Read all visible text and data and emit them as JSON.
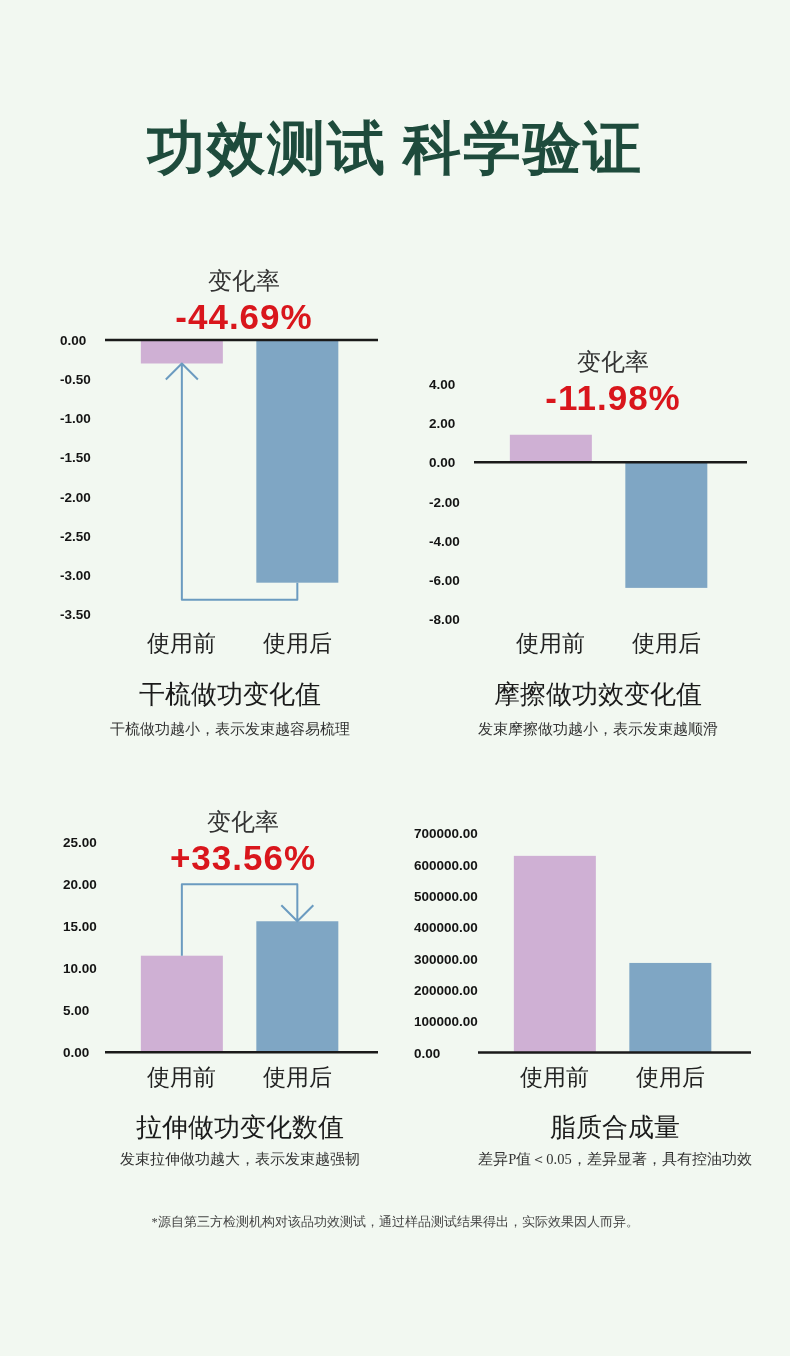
{
  "chart_data": [
    {
      "type": "other",
      "title": "功效测试 科学验证"
    },
    {
      "type": "bar",
      "title": "干梳做功变化值",
      "subtitle": "干梳做功越小，表示发束越容易梳理",
      "annotations": [
        "变化率",
        "-44.69%"
      ],
      "categories": [
        "使用前",
        "使用后"
      ],
      "values": [
        -0.3,
        -3.1
      ],
      "colors": [
        "#cfb0d4",
        "#7fa6c4"
      ],
      "ylim": [
        -3.5,
        0
      ],
      "yticks": [
        {
          "value": 0,
          "label": "0.00"
        },
        {
          "value": -0.5,
          "label": "-0.50"
        },
        {
          "value": -1,
          "label": "-1.00"
        },
        {
          "value": -1.5,
          "label": "-1.50"
        },
        {
          "value": -2,
          "label": "-2.00"
        },
        {
          "value": -2.5,
          "label": "-2.50"
        },
        {
          "value": -3,
          "label": "-3.00"
        },
        {
          "value": -3.5,
          "label": "-3.50"
        }
      ]
    },
    {
      "type": "bar",
      "title": "摩擦做功效变化值",
      "subtitle": "发束摩擦做功越小，表示发束越顺滑",
      "annotations": [
        "变化率",
        "-11.98%"
      ],
      "categories": [
        "使用前",
        "使用后"
      ],
      "values": [
        1.4,
        -6.4
      ],
      "colors": [
        "#cfb0d4",
        "#7fa6c4"
      ],
      "ylim": [
        -8,
        4
      ],
      "yticks": [
        {
          "value": 4,
          "label": "4.00"
        },
        {
          "value": 2,
          "label": "2.00"
        },
        {
          "value": 0,
          "label": "0.00"
        },
        {
          "value": -2,
          "label": "-2.00"
        },
        {
          "value": -4,
          "label": "-4.00"
        },
        {
          "value": -6,
          "label": "-6.00"
        },
        {
          "value": -8,
          "label": "-8.00"
        }
      ]
    },
    {
      "type": "bar",
      "title": "拉伸做功变化数值",
      "subtitle": "发束拉伸做功越大，表示发束越强韧",
      "annotations": [
        "变化率",
        "+33.56%"
      ],
      "categories": [
        "使用前",
        "使用后"
      ],
      "values": [
        11.5,
        15.6
      ],
      "colors": [
        "#cfb0d4",
        "#7fa6c4"
      ],
      "ylim": [
        0,
        25
      ],
      "yticks": [
        {
          "value": 25,
          "label": "25.00"
        },
        {
          "value": 20,
          "label": "20.00"
        },
        {
          "value": 15,
          "label": "15.00"
        },
        {
          "value": 10,
          "label": "10.00"
        },
        {
          "value": 5,
          "label": "5.00"
        },
        {
          "value": 0,
          "label": "0.00"
        }
      ]
    },
    {
      "type": "bar",
      "title": "脂质合成量",
      "subtitle": "差异P值＜0.05，差异显著，具有控油功效",
      "categories": [
        "使用前",
        "使用后"
      ],
      "values": [
        628000,
        286000
      ],
      "colors": [
        "#cfb0d4",
        "#7fa6c4"
      ],
      "ylim": [
        0,
        700000
      ],
      "yticks": [
        {
          "value": 700000,
          "label": "700000.00"
        },
        {
          "value": 600000,
          "label": "600000.00"
        },
        {
          "value": 500000,
          "label": "500000.00"
        },
        {
          "value": 400000,
          "label": "400000.00"
        },
        {
          "value": 300000,
          "label": "300000.00"
        },
        {
          "value": 200000,
          "label": "200000.00"
        },
        {
          "value": 100000,
          "label": "100000.00"
        },
        {
          "value": 0,
          "label": "0.00"
        }
      ]
    },
    {
      "type": "other",
      "annotations": [
        "*源自第三方检测机构对该品功效测试，通过样品测试结果得出，实际效果因人而异。"
      ]
    }
  ]
}
